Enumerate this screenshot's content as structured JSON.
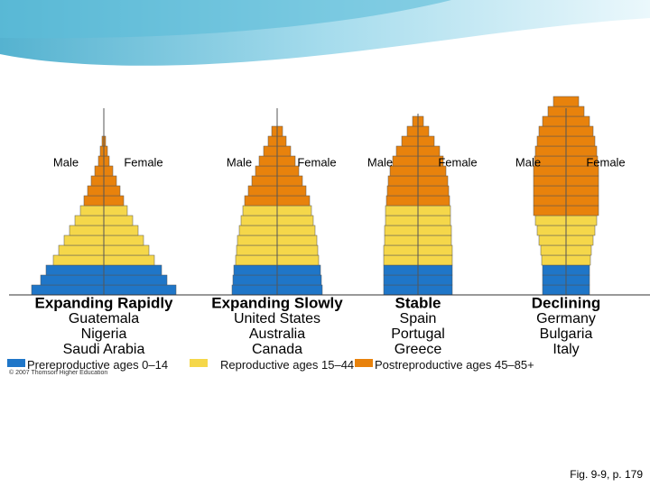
{
  "pyramids": [
    {
      "male": "Male",
      "female": "Female",
      "title": "Expanding Rapidly",
      "countries": [
        "Guatemala",
        "Nigeria",
        "Saudi Arabia"
      ]
    },
    {
      "male": "Male",
      "female": "Female",
      "title": "Expanding Slowly",
      "countries": [
        "United States",
        "Australia",
        "Canada"
      ]
    },
    {
      "male": "Male",
      "female": "Female",
      "title": "Stable",
      "countries": [
        "Spain",
        "Portugal",
        "Greece"
      ]
    },
    {
      "male": "Male",
      "female": "Female",
      "title": "Declining",
      "countries": [
        "Germany",
        "Bulgaria",
        "Italy"
      ]
    }
  ],
  "legend": [
    "Prereproductive ages 0–14",
    "Reproductive ages 15–44",
    "Postreproductive ages 45–85+"
  ],
  "copyright": "© 2007 Thomson Higher Education",
  "caption": "Fig. 9-9, p. 179"
}
